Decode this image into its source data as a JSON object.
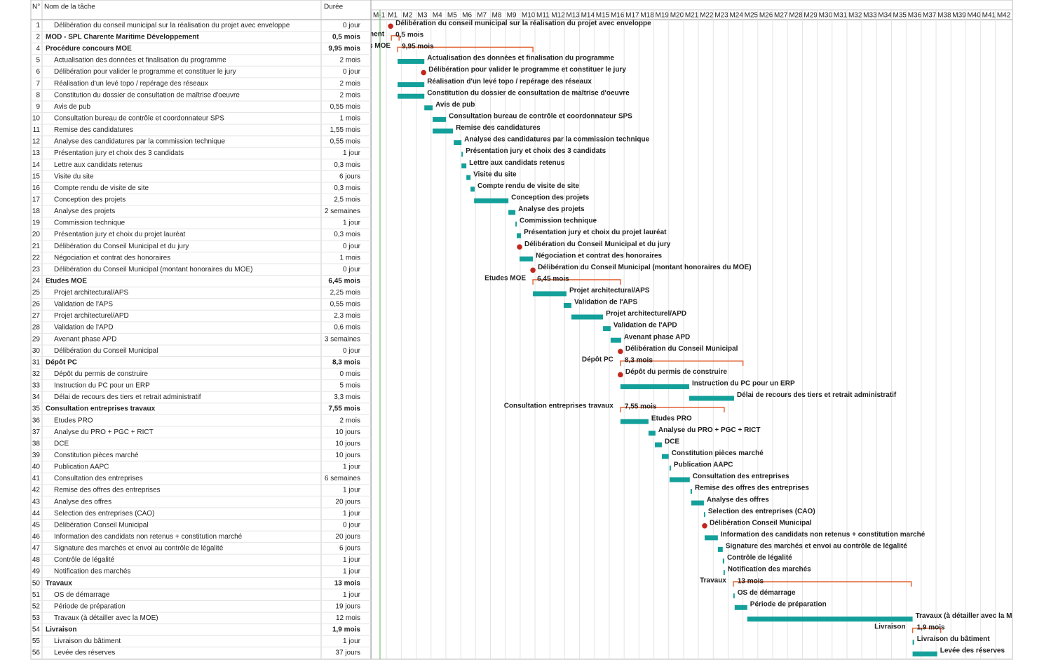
{
  "chart_data": {
    "type": "gantt",
    "columns": {
      "id": "N°",
      "name": "Nom de la tâche",
      "duration": "Durée"
    },
    "months": [
      "M-1",
      "M1",
      "M2",
      "M3",
      "M4",
      "M5",
      "M6",
      "M7",
      "M8",
      "M9",
      "M10",
      "M11",
      "M12",
      "M13",
      "M14",
      "M15",
      "M16",
      "M17",
      "M18",
      "M19",
      "M20",
      "M21",
      "M22",
      "M23",
      "M24",
      "M25",
      "M26",
      "M27",
      "M28",
      "M29",
      "M30",
      "M31",
      "M32",
      "M33",
      "M34",
      "M35",
      "M36",
      "M37",
      "M38",
      "M39",
      "M40",
      "M41",
      "M42"
    ],
    "xlim": [
      -1,
      42
    ],
    "colors": {
      "task": "#14a09a",
      "summary": "#e2673a",
      "milestone": "#c0281e"
    },
    "tasks": [
      {
        "id": 1,
        "name": "Délibération du conseil municipal sur la réalisation du projet avec enveloppe",
        "duration": "0 jour",
        "kind": "milestone",
        "start": 0.28
      },
      {
        "id": 2,
        "name": "MOD - SPL Charente Maritime Développement",
        "duration": "0,5 mois",
        "kind": "summary",
        "start": 0.33,
        "end": 0.85
      },
      {
        "id": 4,
        "name": "Procédure concours MOE",
        "duration": "9,95 mois",
        "kind": "summary",
        "start": 0.75,
        "end": 9.86
      },
      {
        "id": 5,
        "name": "Actualisation des données et finalisation du programme",
        "duration": "2 mois",
        "kind": "task",
        "start": 0.75,
        "end": 2.55
      },
      {
        "id": 6,
        "name": "Délibération pour valider le programme et constituer le jury",
        "duration": "0 jour",
        "kind": "milestone",
        "start": 2.5
      },
      {
        "id": 7,
        "name": "Réalisation d'un levé topo / repérage des réseaux",
        "duration": "2 mois",
        "kind": "task",
        "start": 0.75,
        "end": 2.55
      },
      {
        "id": 8,
        "name": "Constitution du dossier de consultation de maîtrise d'oeuvre",
        "duration": "2 mois",
        "kind": "task",
        "start": 0.75,
        "end": 2.55
      },
      {
        "id": 9,
        "name": "Avis de pub",
        "duration": "0,55 mois",
        "kind": "task",
        "start": 2.55,
        "end": 3.11
      },
      {
        "id": 10,
        "name": "Consultation bureau de contrôle et coordonnateur SPS",
        "duration": "1 mois",
        "kind": "task",
        "start": 3.11,
        "end": 4.01
      },
      {
        "id": 11,
        "name": "Remise des candidatures",
        "duration": "1,55 mois",
        "kind": "task",
        "start": 3.11,
        "end": 4.48
      },
      {
        "id": 12,
        "name": "Analyse des candidatures par la commission technique",
        "duration": "0,55 mois",
        "kind": "task",
        "start": 4.53,
        "end": 5.05
      },
      {
        "id": 13,
        "name": "Présentation jury et choix des 3 candidats",
        "duration": "1 jour",
        "kind": "task",
        "start": 5.05,
        "end": 5.14
      },
      {
        "id": 14,
        "name": "Lettre aux candidats retenus",
        "duration": "0,3 mois",
        "kind": "task",
        "start": 5.05,
        "end": 5.38
      },
      {
        "id": 15,
        "name": "Visite du site",
        "duration": "6 jours",
        "kind": "task",
        "start": 5.38,
        "end": 5.66
      },
      {
        "id": 16,
        "name": "Compte rendu de visite de site",
        "duration": "0,3 mois",
        "kind": "task",
        "start": 5.66,
        "end": 5.94
      },
      {
        "id": 17,
        "name": "Conception des projets",
        "duration": "2,5 mois",
        "kind": "task",
        "start": 5.9,
        "end": 8.21
      },
      {
        "id": 18,
        "name": "Analyse des projets",
        "duration": "2 semaines",
        "kind": "task",
        "start": 8.21,
        "end": 8.68
      },
      {
        "id": 19,
        "name": "Commission technique",
        "duration": "1 jour",
        "kind": "task",
        "start": 8.68,
        "end": 8.77
      },
      {
        "id": 20,
        "name": "Présentation jury et choix du projet lauréat",
        "duration": "0,3 mois",
        "kind": "task",
        "start": 8.77,
        "end": 9.06
      },
      {
        "id": 21,
        "name": "Délibération du Conseil Municipal et du jury",
        "duration": "0 jour",
        "kind": "milestone",
        "start": 8.96
      },
      {
        "id": 22,
        "name": "Négociation et contrat des honoraires",
        "duration": "1 mois",
        "kind": "task",
        "start": 8.96,
        "end": 9.86
      },
      {
        "id": 23,
        "name": "Délibération du Conseil Municipal (montant honoraires du MOE)",
        "duration": "0 jour",
        "kind": "milestone",
        "start": 9.86
      },
      {
        "id": 24,
        "name": "Etudes MOE",
        "duration": "6,45 mois",
        "kind": "summary",
        "start": 9.86,
        "end": 15.75
      },
      {
        "id": 25,
        "name": "Projet architectural/APS",
        "duration": "2,25 mois",
        "kind": "task",
        "start": 9.86,
        "end": 12.12
      },
      {
        "id": 26,
        "name": "Validation de l'APS",
        "duration": "0,55 mois",
        "kind": "task",
        "start": 11.93,
        "end": 12.45
      },
      {
        "id": 27,
        "name": "Projet architecturel/APD",
        "duration": "2,3 mois",
        "kind": "task",
        "start": 12.45,
        "end": 14.58
      },
      {
        "id": 28,
        "name": "Validation de l'APD",
        "duration": "0,6 mois",
        "kind": "task",
        "start": 14.58,
        "end": 15.09
      },
      {
        "id": 29,
        "name": "Avenant phase APD",
        "duration": "3 semaines",
        "kind": "task",
        "start": 15.09,
        "end": 15.8
      },
      {
        "id": 30,
        "name": "Délibération du Conseil Municipal",
        "duration": "0 jour",
        "kind": "milestone",
        "start": 15.75
      },
      {
        "id": 31,
        "name": "Dépôt PC",
        "duration": "8,3 mois",
        "kind": "summary",
        "start": 15.75,
        "end": 24.0
      },
      {
        "id": 32,
        "name": "Dépôt du permis de construire",
        "duration": "0 mois",
        "kind": "milestone",
        "start": 15.75
      },
      {
        "id": 33,
        "name": "Instruction du PC pour un ERP",
        "duration": "5 mois",
        "kind": "task",
        "start": 15.75,
        "end": 20.38
      },
      {
        "id": 34,
        "name": "Délai de recours des tiers et retrait administratif",
        "duration": "3,3 mois",
        "kind": "task",
        "start": 20.38,
        "end": 23.4
      },
      {
        "id": 35,
        "name": "Consultation entreprises travaux",
        "duration": "7,55 mois",
        "kind": "summary",
        "start": 15.75,
        "end": 22.74
      },
      {
        "id": 36,
        "name": "Etudes PRO",
        "duration": "2 mois",
        "kind": "task",
        "start": 15.75,
        "end": 17.64
      },
      {
        "id": 37,
        "name": "Analyse du PRO + PGC + RICT",
        "duration": "10 jours",
        "kind": "task",
        "start": 17.64,
        "end": 18.11
      },
      {
        "id": 38,
        "name": "DCE",
        "duration": "10 jours",
        "kind": "task",
        "start": 18.07,
        "end": 18.54
      },
      {
        "id": 39,
        "name": "Constitution pièces marché",
        "duration": "10 jours",
        "kind": "task",
        "start": 18.54,
        "end": 19.0
      },
      {
        "id": 40,
        "name": "Publication AAPC",
        "duration": "1 jour",
        "kind": "task",
        "start": 19.06,
        "end": 19.15
      },
      {
        "id": 41,
        "name": "Consultation des entreprises",
        "duration": "6 semaines",
        "kind": "task",
        "start": 19.06,
        "end": 20.42
      },
      {
        "id": 42,
        "name": "Remise des offres des entreprises",
        "duration": "1 jour",
        "kind": "task",
        "start": 20.47,
        "end": 20.57
      },
      {
        "id": 43,
        "name": "Analyse des offres",
        "duration": "20 jours",
        "kind": "task",
        "start": 20.52,
        "end": 21.37
      },
      {
        "id": 44,
        "name": "Selection des entreprises (CAO)",
        "duration": "1 jour",
        "kind": "task",
        "start": 21.37,
        "end": 21.46
      },
      {
        "id": 45,
        "name": "Délibération Conseil Municipal",
        "duration": "0 jour",
        "kind": "milestone",
        "start": 21.42
      },
      {
        "id": 46,
        "name": "Information des candidats non retenus + constitution marché",
        "duration": "20 jours",
        "kind": "task",
        "start": 21.42,
        "end": 22.31
      },
      {
        "id": 47,
        "name": "Signature des marchés et envoi au contrôle de légalité",
        "duration": "6 jours",
        "kind": "task",
        "start": 22.31,
        "end": 22.64
      },
      {
        "id": 48,
        "name": "Contrôle de légalité",
        "duration": "1 jour",
        "kind": "task",
        "start": 22.64,
        "end": 22.74
      },
      {
        "id": 49,
        "name": "Notification des marchés",
        "duration": "1 jour",
        "kind": "task",
        "start": 22.69,
        "end": 22.78
      },
      {
        "id": 50,
        "name": "Travaux",
        "duration": "13 mois",
        "kind": "summary",
        "start": 23.35,
        "end": 35.33
      },
      {
        "id": 51,
        "name": "OS de démarrage",
        "duration": "1 jour",
        "kind": "task",
        "start": 23.35,
        "end": 23.44
      },
      {
        "id": 52,
        "name": "Période de préparation",
        "duration": "19 jours",
        "kind": "task",
        "start": 23.44,
        "end": 24.29
      },
      {
        "id": 53,
        "name": "Travaux (à détailler avec la MOE)",
        "duration": "12 mois",
        "kind": "task",
        "start": 24.29,
        "end": 35.42
      },
      {
        "id": 54,
        "name": "Livraison",
        "duration": "1,9 mois",
        "kind": "summary",
        "start": 35.42,
        "end": 37.31
      },
      {
        "id": 55,
        "name": "Livraison du bâtiment",
        "duration": "1 jour",
        "kind": "task",
        "start": 35.42,
        "end": 35.52
      },
      {
        "id": 56,
        "name": "Levée des réserves",
        "duration": "37 jours",
        "kind": "task",
        "start": 35.42,
        "end": 37.08
      }
    ]
  }
}
